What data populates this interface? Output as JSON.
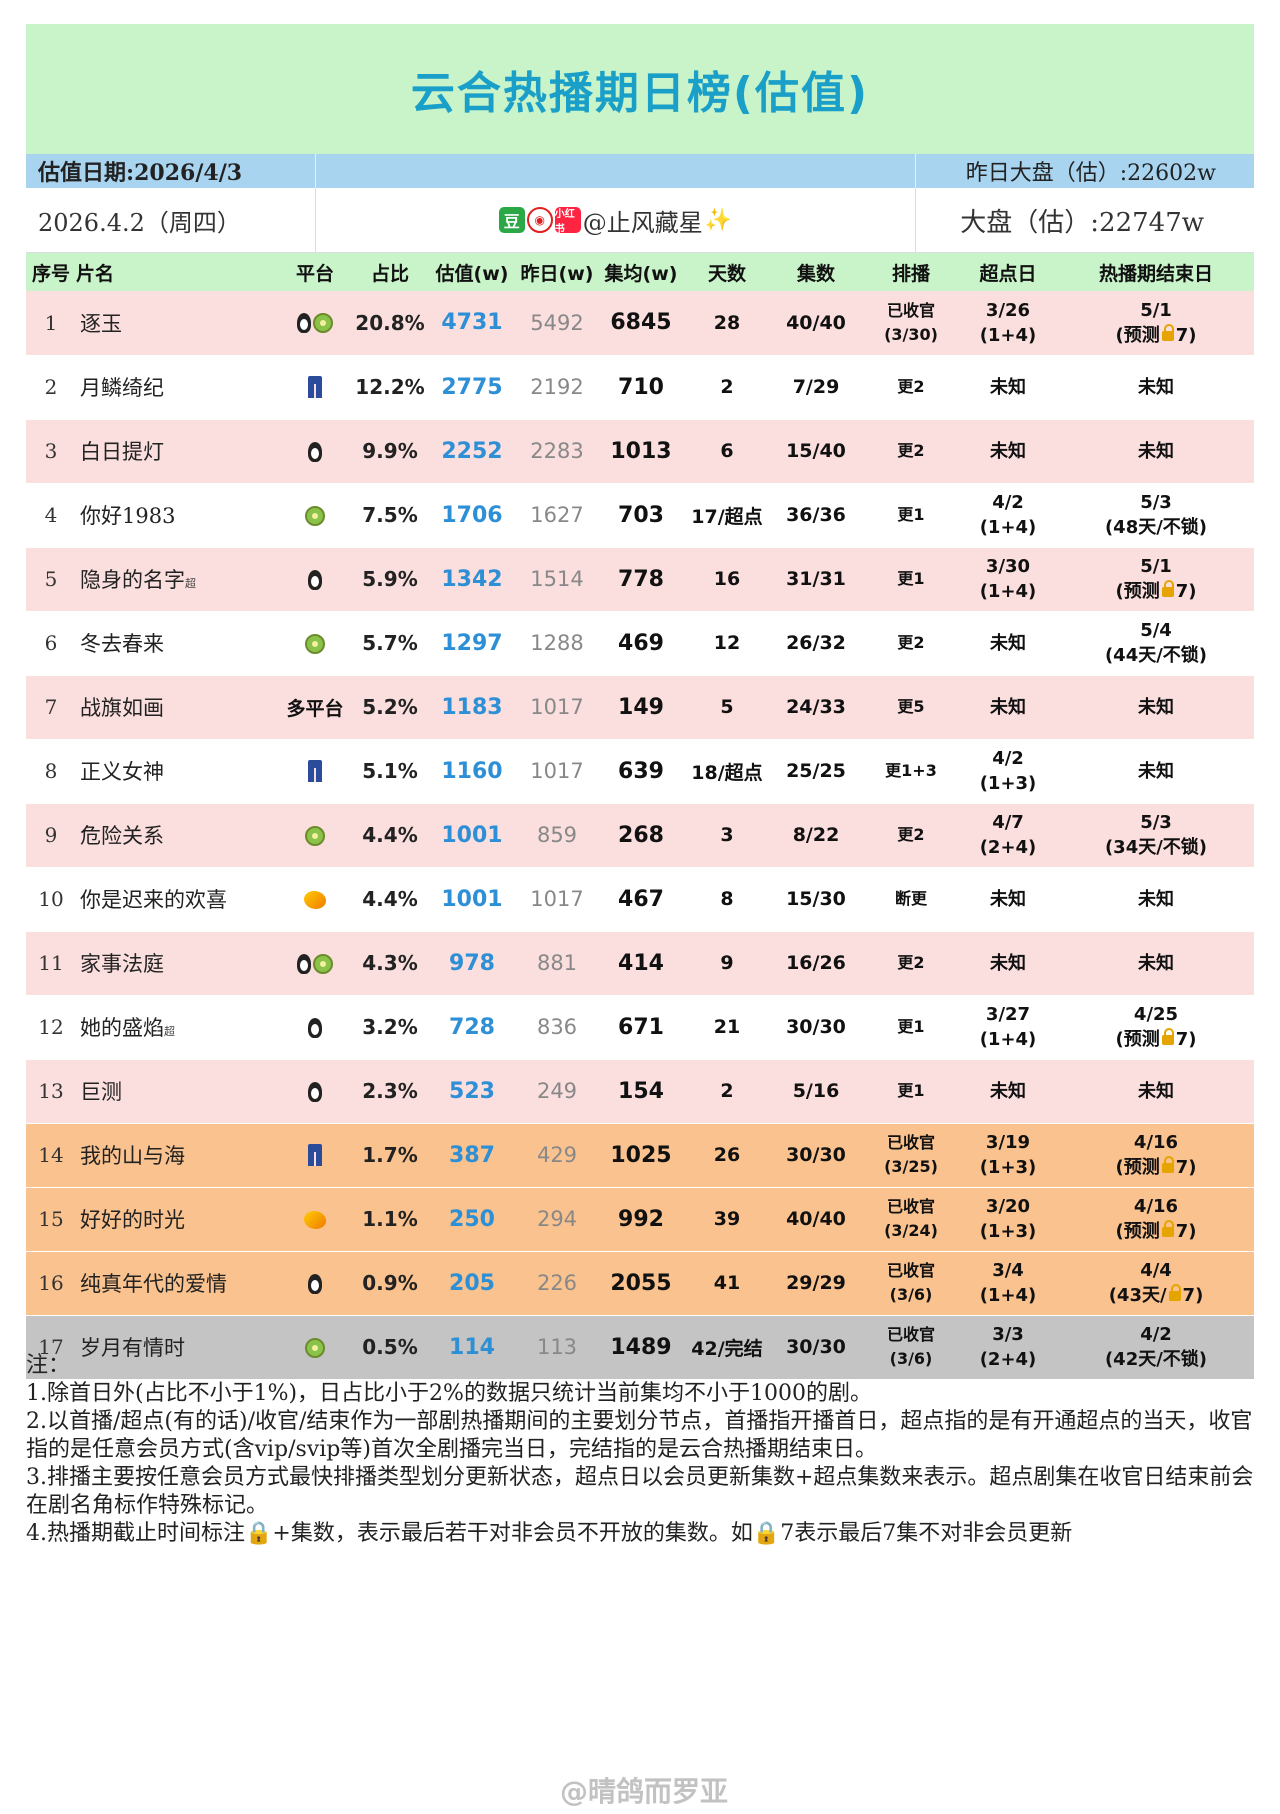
{
  "title": "云合热播期日榜(估值)",
  "info": {
    "date_label": "估值日期:2026/4/3",
    "yesterday_total": "昨日大盘（估）:22602w",
    "date_sub": "2026.4.2（周四）",
    "author": "@止风藏星",
    "badge_dou": "豆",
    "badge_xhs": "小红书",
    "total": "大盘（估）:22747w"
  },
  "headers": [
    "序号",
    "片名",
    "平台",
    "占比",
    "估值(w)",
    "昨日(w)",
    "集均(w)",
    "天数",
    "集数",
    "排播",
    "超点日",
    "热播期结束日"
  ],
  "rows": [
    {
      "rank": "1",
      "name": "逐玉",
      "sup": "",
      "platform": [
        "penguin",
        "kiwi"
      ],
      "share": "20.8%",
      "value": "4731",
      "yesterday": "5492",
      "avg": "6845",
      "days": "28",
      "eps": "40/40",
      "sched1": "已收官",
      "sched2": "(3/30)",
      "sp1": "3/26",
      "sp2": "(1+4)",
      "end1": "5/1",
      "end2a": "(预测",
      "end2b": "7)",
      "lock": true,
      "style": "pink"
    },
    {
      "rank": "2",
      "name": "月鳞绮纪",
      "sup": "",
      "platform": [
        "jeans"
      ],
      "share": "12.2%",
      "value": "2775",
      "yesterday": "2192",
      "avg": "710",
      "days": "2",
      "eps": "7/29",
      "sched1": "更2",
      "sched2": "",
      "sp1": "未知",
      "sp2": "",
      "end1": "未知",
      "end2a": "",
      "end2b": "",
      "lock": false,
      "style": "white"
    },
    {
      "rank": "3",
      "name": "白日提灯",
      "sup": "",
      "platform": [
        "penguin"
      ],
      "share": "9.9%",
      "value": "2252",
      "yesterday": "2283",
      "avg": "1013",
      "days": "6",
      "eps": "15/40",
      "sched1": "更2",
      "sched2": "",
      "sp1": "未知",
      "sp2": "",
      "end1": "未知",
      "end2a": "",
      "end2b": "",
      "lock": false,
      "style": "pink"
    },
    {
      "rank": "4",
      "name": "你好1983",
      "sup": "",
      "platform": [
        "kiwi"
      ],
      "share": "7.5%",
      "value": "1706",
      "yesterday": "1627",
      "avg": "703",
      "days": "17/超点",
      "eps": "36/36",
      "sched1": "更1",
      "sched2": "",
      "sp1": "4/2",
      "sp2": "(1+4)",
      "end1": "5/3",
      "end2a": "(48天/不锁)",
      "end2b": "",
      "lock": false,
      "style": "white"
    },
    {
      "rank": "5",
      "name": "隐身的名字",
      "sup": "超",
      "platform": [
        "penguin"
      ],
      "share": "5.9%",
      "value": "1342",
      "yesterday": "1514",
      "avg": "778",
      "days": "16",
      "eps": "31/31",
      "sched1": "更1",
      "sched2": "",
      "sp1": "3/30",
      "sp2": "(1+4)",
      "end1": "5/1",
      "end2a": "(预测",
      "end2b": "7)",
      "lock": true,
      "style": "pink"
    },
    {
      "rank": "6",
      "name": "冬去春来",
      "sup": "",
      "platform": [
        "kiwi"
      ],
      "share": "5.7%",
      "value": "1297",
      "yesterday": "1288",
      "avg": "469",
      "days": "12",
      "eps": "26/32",
      "sched1": "更2",
      "sched2": "",
      "sp1": "未知",
      "sp2": "",
      "end1": "5/4",
      "end2a": "(44天/不锁)",
      "end2b": "",
      "lock": false,
      "style": "white"
    },
    {
      "rank": "7",
      "name": "战旗如画",
      "sup": "",
      "platform": [],
      "platform_text": "多平台",
      "share": "5.2%",
      "value": "1183",
      "yesterday": "1017",
      "avg": "149",
      "days": "5",
      "eps": "24/33",
      "sched1": "更5",
      "sched2": "",
      "sp1": "未知",
      "sp2": "",
      "end1": "未知",
      "end2a": "",
      "end2b": "",
      "lock": false,
      "style": "pink"
    },
    {
      "rank": "8",
      "name": "正义女神",
      "sup": "",
      "platform": [
        "jeans"
      ],
      "share": "5.1%",
      "value": "1160",
      "yesterday": "1017",
      "avg": "639",
      "days": "18/超点",
      "eps": "25/25",
      "sched1": "更1+3",
      "sched2": "",
      "sp1": "4/2",
      "sp2": "(1+3)",
      "end1": "未知",
      "end2a": "",
      "end2b": "",
      "lock": false,
      "style": "white"
    },
    {
      "rank": "9",
      "name": "危险关系",
      "sup": "",
      "platform": [
        "kiwi"
      ],
      "share": "4.4%",
      "value": "1001",
      "yesterday": "859",
      "avg": "268",
      "days": "3",
      "eps": "8/22",
      "sched1": "更2",
      "sched2": "",
      "sp1": "4/7",
      "sp2": "(2+4)",
      "end1": "5/3",
      "end2a": "(34天/不锁)",
      "end2b": "",
      "lock": false,
      "style": "pink"
    },
    {
      "rank": "10",
      "name": "你是迟来的欢喜",
      "sup": "",
      "platform": [
        "mango"
      ],
      "share": "4.4%",
      "value": "1001",
      "yesterday": "1017",
      "avg": "467",
      "days": "8",
      "eps": "15/30",
      "sched1": "断更",
      "sched2": "",
      "sp1": "未知",
      "sp2": "",
      "end1": "未知",
      "end2a": "",
      "end2b": "",
      "lock": false,
      "style": "white"
    },
    {
      "rank": "11",
      "name": "家事法庭",
      "sup": "",
      "platform": [
        "penguin",
        "kiwi"
      ],
      "share": "4.3%",
      "value": "978",
      "yesterday": "881",
      "avg": "414",
      "days": "9",
      "eps": "16/26",
      "sched1": "更2",
      "sched2": "",
      "sp1": "未知",
      "sp2": "",
      "end1": "未知",
      "end2a": "",
      "end2b": "",
      "lock": false,
      "style": "pink"
    },
    {
      "rank": "12",
      "name": "她的盛焰",
      "sup": "超",
      "platform": [
        "penguin"
      ],
      "share": "3.2%",
      "value": "728",
      "yesterday": "836",
      "avg": "671",
      "days": "21",
      "eps": "30/30",
      "sched1": "更1",
      "sched2": "",
      "sp1": "3/27",
      "sp2": "(1+4)",
      "end1": "4/25",
      "end2a": "(预测",
      "end2b": "7)",
      "lock": true,
      "style": "white"
    },
    {
      "rank": "13",
      "name": "巨测",
      "sup": "",
      "platform": [
        "penguin"
      ],
      "share": "2.3%",
      "value": "523",
      "yesterday": "249",
      "avg": "154",
      "days": "2",
      "eps": "5/16",
      "sched1": "更1",
      "sched2": "",
      "sp1": "未知",
      "sp2": "",
      "end1": "未知",
      "end2a": "",
      "end2b": "",
      "lock": false,
      "style": "pink"
    },
    {
      "rank": "14",
      "name": "我的山与海",
      "sup": "",
      "platform": [
        "jeans"
      ],
      "share": "1.7%",
      "value": "387",
      "yesterday": "429",
      "avg": "1025",
      "days": "26",
      "eps": "30/30",
      "sched1": "已收官",
      "sched2": "(3/25)",
      "sp1": "3/19",
      "sp2": "(1+3)",
      "end1": "4/16",
      "end2a": "(预测",
      "end2b": "7)",
      "lock": true,
      "style": "orange"
    },
    {
      "rank": "15",
      "name": "好好的时光",
      "sup": "",
      "platform": [
        "mango"
      ],
      "share": "1.1%",
      "value": "250",
      "yesterday": "294",
      "avg": "992",
      "days": "39",
      "eps": "40/40",
      "sched1": "已收官",
      "sched2": "(3/24)",
      "sp1": "3/20",
      "sp2": "(1+3)",
      "end1": "4/16",
      "end2a": "(预测",
      "end2b": "7)",
      "lock": true,
      "style": "orange"
    },
    {
      "rank": "16",
      "name": "纯真年代的爱情",
      "sup": "",
      "platform": [
        "penguin"
      ],
      "share": "0.9%",
      "value": "205",
      "yesterday": "226",
      "avg": "2055",
      "days": "41",
      "eps": "29/29",
      "sched1": "已收官",
      "sched2": "(3/6)",
      "sp1": "3/4",
      "sp2": "(1+4)",
      "end1": "4/4",
      "end2a": "(43天/",
      "end2b": "7)",
      "lock": true,
      "style": "orange"
    },
    {
      "rank": "17",
      "name": "岁月有情时",
      "sup": "",
      "platform": [
        "kiwi"
      ],
      "share": "0.5%",
      "value": "114",
      "yesterday": "113",
      "avg": "1489",
      "days": "42/完结",
      "eps": "30/30",
      "sched1": "已收官",
      "sched2": "(3/6)",
      "sp1": "3/3",
      "sp2": "(2+4)",
      "end1": "4/2",
      "end2a": "(42天/不锁)",
      "end2b": "",
      "lock": false,
      "style": "gray"
    }
  ],
  "notes": [
    "注：",
    "1.除首日外(占比不小于1%)，日占比小于2%的数据只统计当前集均不小于1000的剧。",
    "2.以首播/超点(有的话)/收官/结束作为一部剧热播期间的主要划分节点，首播指开播首日，超点指的是有开通超点的当天，收官指的是任意会员方式(含vip/svip等)首次全剧播完当日，完结指的是云合热播期结束日。",
    "3.排播主要按任意会员方式最快排播类型划分更新状态，超点日以会员更新集数+超点集数来表示。超点剧集在收官日结束前会在剧名角标作特殊标记。",
    "4.热播期截止时间标注🔒+集数，表示最后若干对非会员不开放的集数。如🔒7表示最后7集不对非会员更新"
  ],
  "watermark": "@晴鸽而罗亚"
}
